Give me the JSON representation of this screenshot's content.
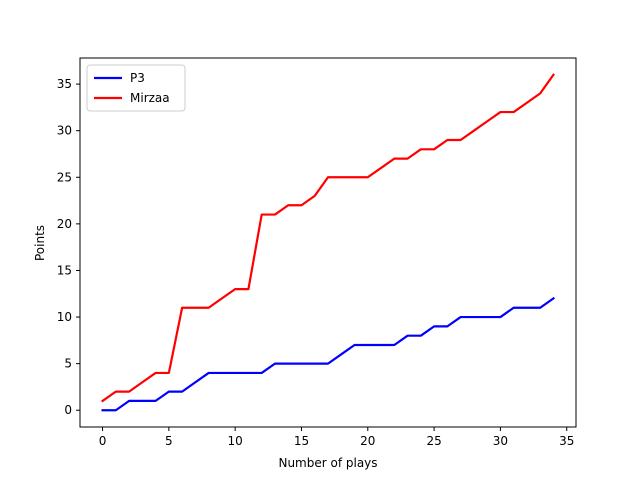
{
  "chart_data": {
    "type": "line",
    "title": "",
    "xlabel": "Number of plays",
    "ylabel": "Points",
    "xlim": [
      -1.7,
      35.7
    ],
    "ylim": [
      -1.8,
      37.8
    ],
    "xticks": [
      0,
      5,
      10,
      15,
      20,
      25,
      30,
      35
    ],
    "yticks": [
      0,
      5,
      10,
      15,
      20,
      25,
      30,
      35
    ],
    "grid": false,
    "legend_position": "top-left",
    "series": [
      {
        "name": "P3",
        "color": "#0000ff",
        "x": [
          0,
          1,
          2,
          3,
          4,
          5,
          6,
          7,
          8,
          9,
          10,
          11,
          12,
          13,
          14,
          15,
          16,
          17,
          18,
          19,
          20,
          21,
          22,
          23,
          24,
          25,
          26,
          27,
          28,
          29,
          30,
          31,
          32,
          33,
          34
        ],
        "values": [
          0,
          0,
          1,
          1,
          1,
          2,
          2,
          3,
          4,
          4,
          4,
          4,
          4,
          5,
          5,
          5,
          5,
          5,
          6,
          7,
          7,
          7,
          7,
          8,
          8,
          9,
          9,
          10,
          10,
          10,
          10,
          11,
          11,
          11,
          12
        ]
      },
      {
        "name": "Mirzaa",
        "color": "#ff0000",
        "x": [
          0,
          1,
          2,
          3,
          4,
          5,
          6,
          7,
          8,
          9,
          10,
          11,
          12,
          13,
          14,
          15,
          16,
          17,
          18,
          19,
          20,
          21,
          22,
          23,
          24,
          25,
          26,
          27,
          28,
          29,
          30,
          31,
          32,
          33,
          34
        ],
        "values": [
          1,
          2,
          2,
          3,
          4,
          4,
          11,
          11,
          11,
          12,
          13,
          13,
          21,
          21,
          22,
          22,
          23,
          25,
          25,
          25,
          25,
          26,
          27,
          27,
          28,
          28,
          29,
          29,
          30,
          31,
          32,
          32,
          33,
          34,
          36
        ]
      }
    ]
  }
}
